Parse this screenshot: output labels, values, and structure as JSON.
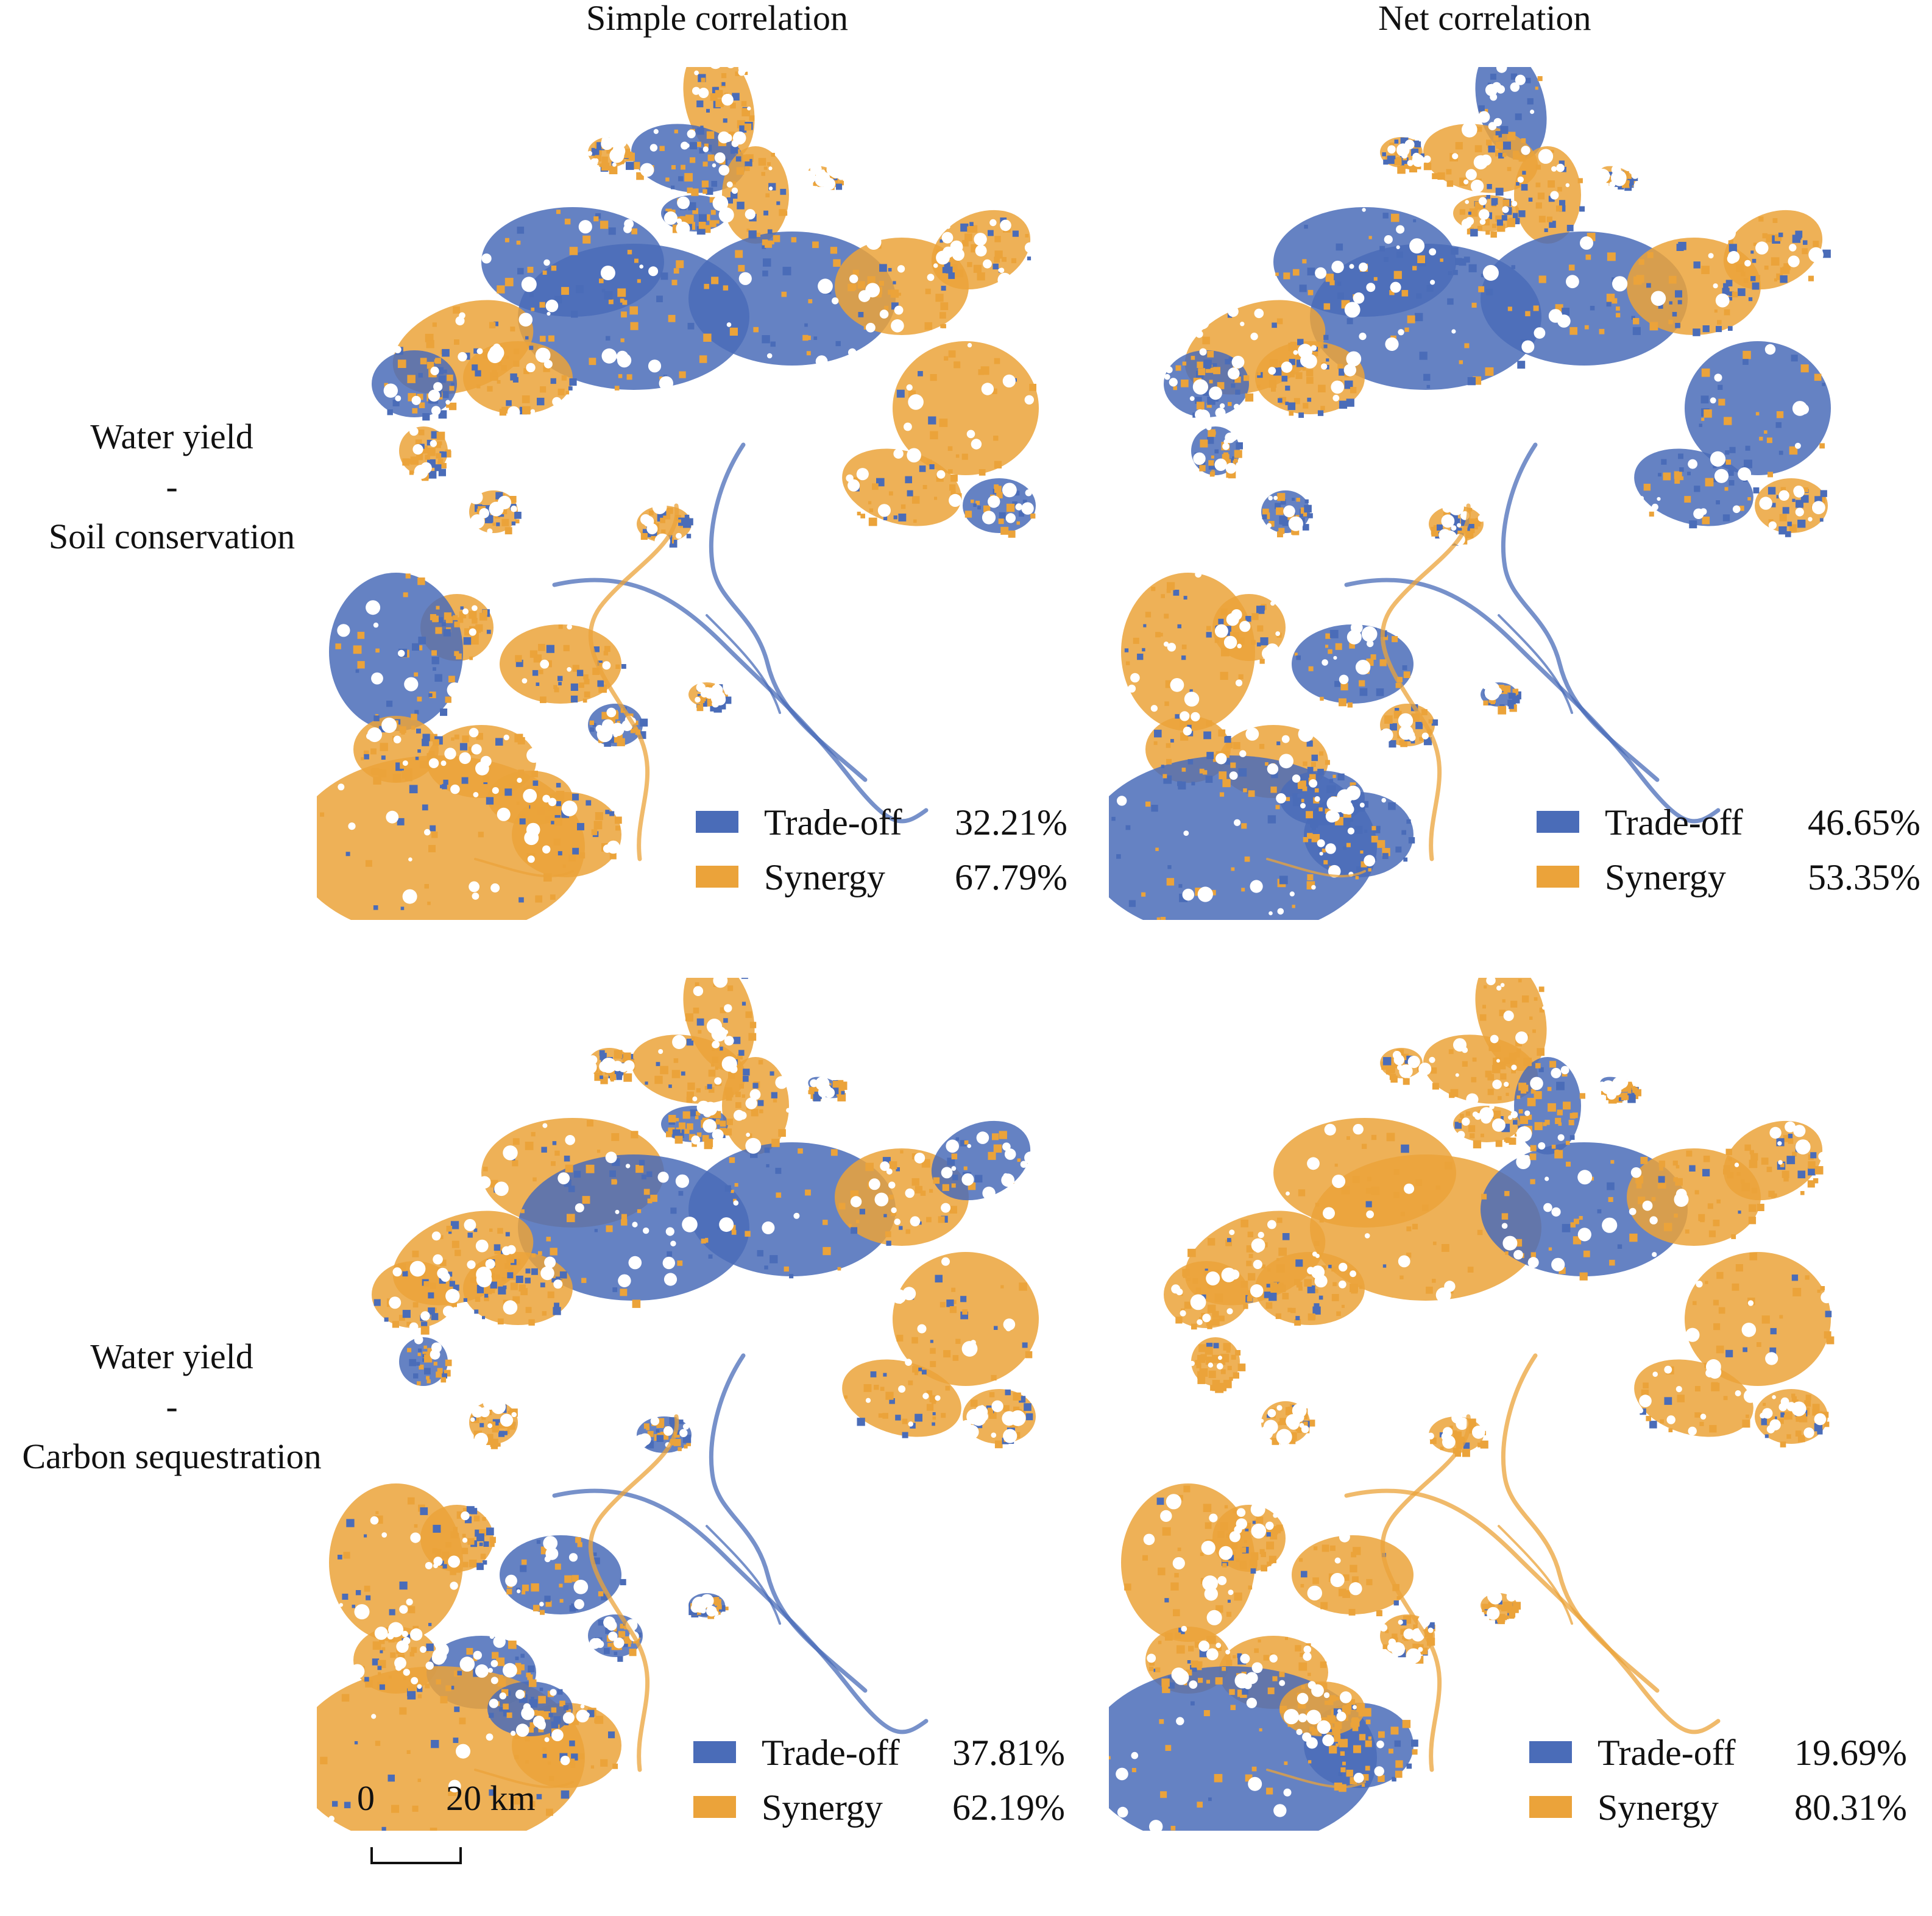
{
  "columns": {
    "simple": "Simple correlation",
    "net": "Net correlation"
  },
  "rows": [
    {
      "line1": "Water yield",
      "line2": "-",
      "line3": "Soil conservation"
    },
    {
      "line1": "Water yield",
      "line2": "-",
      "line3": "Carbon sequestration"
    }
  ],
  "colors": {
    "tradeoff": "#4a6cb8",
    "synergy": "#eba33a"
  },
  "panels": {
    "p11": {
      "tradeoff_label": "Trade-off",
      "tradeoff_value": "32.21%",
      "synergy_label": "Synergy",
      "synergy_value": "67.79%",
      "dominant": "synergy",
      "tradeoff_share": 0.3221
    },
    "p12": {
      "tradeoff_label": "Trade-off",
      "tradeoff_value": "46.65%",
      "synergy_label": "Synergy",
      "synergy_value": "53.35%",
      "dominant": "mixed",
      "tradeoff_share": 0.4665
    },
    "p21": {
      "tradeoff_label": "Trade-off",
      "tradeoff_value": "37.81%",
      "synergy_label": "Synergy",
      "synergy_value": "62.19%",
      "dominant": "mixed",
      "tradeoff_share": 0.3781
    },
    "p22": {
      "tradeoff_label": "Trade-off",
      "tradeoff_value": "19.69%",
      "synergy_label": "Synergy",
      "synergy_value": "80.31%",
      "dominant": "synergy",
      "tradeoff_share": 0.1969
    }
  },
  "scale": {
    "zero": "0",
    "twenty": "20 km"
  }
}
